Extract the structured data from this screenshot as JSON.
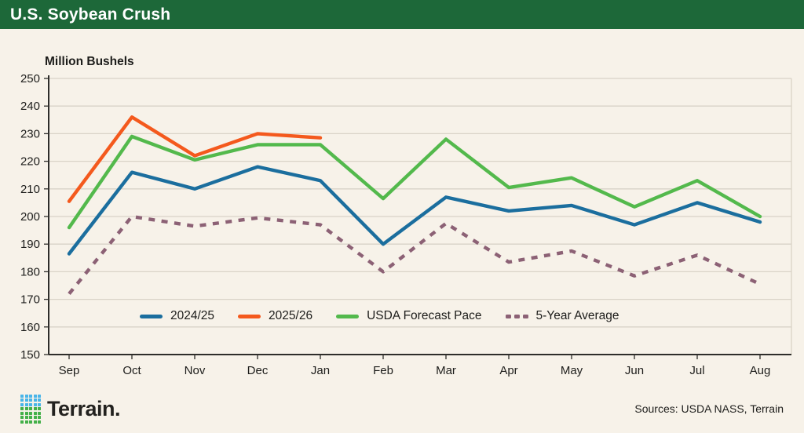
{
  "header": {
    "title": "U.S. Soybean Crush"
  },
  "chart_data": {
    "type": "line",
    "title": "U.S. Soybean Crush",
    "ylabel": "Million Bushels",
    "xlabel": "",
    "ylim": [
      150,
      250
    ],
    "yticks": [
      150,
      160,
      170,
      180,
      190,
      200,
      210,
      220,
      230,
      240,
      250
    ],
    "grid": true,
    "legend_position": "bottom-inside",
    "categories": [
      "Sep",
      "Oct",
      "Nov",
      "Dec",
      "Jan",
      "Feb",
      "Mar",
      "Apr",
      "May",
      "Jun",
      "Jul",
      "Aug"
    ],
    "series": [
      {
        "name": "2024/25",
        "color": "#1b6e9e",
        "style": "solid",
        "values": [
          186.5,
          216,
          210,
          218,
          213,
          190,
          207,
          202,
          204,
          197,
          205,
          198
        ]
      },
      {
        "name": "2025/26",
        "color": "#f4591d",
        "style": "solid",
        "values": [
          205.5,
          236,
          222,
          230,
          228.5,
          null,
          null,
          null,
          null,
          null,
          null,
          null
        ]
      },
      {
        "name": "USDA Forecast Pace",
        "color": "#53b94c",
        "style": "solid",
        "values": [
          196,
          229,
          220.5,
          226,
          226,
          206.5,
          228,
          210.5,
          214,
          203.5,
          213,
          200
        ]
      },
      {
        "name": "5-Year Average",
        "color": "#8c6175",
        "style": "dashed",
        "values": [
          172,
          200,
          196.5,
          199.5,
          197,
          180,
          197.5,
          183.5,
          187.5,
          178.5,
          186,
          175.5
        ]
      }
    ]
  },
  "footer": {
    "logo_text": "Terrain.",
    "sources": "Sources: USDA NASS, Terrain"
  },
  "colors": {
    "header_bg": "#1d6839",
    "background": "#f7f2e9",
    "gridline": "#d9d3c7",
    "axis": "#2e2d2a",
    "text": "#1d1d1b",
    "logo_blue": "#4ab5e8",
    "logo_green": "#43b049"
  }
}
